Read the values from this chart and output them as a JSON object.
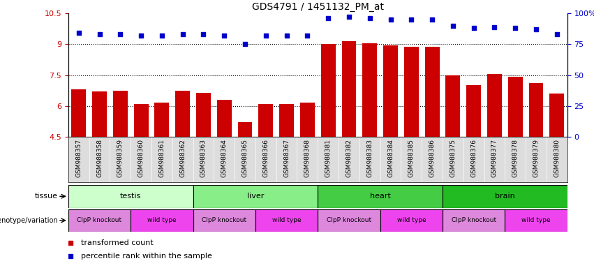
{
  "title": "GDS4791 / 1451132_PM_at",
  "samples": [
    "GSM988357",
    "GSM988358",
    "GSM988359",
    "GSM988360",
    "GSM988361",
    "GSM988362",
    "GSM988363",
    "GSM988364",
    "GSM988365",
    "GSM988366",
    "GSM988367",
    "GSM988368",
    "GSM988381",
    "GSM988382",
    "GSM988383",
    "GSM988384",
    "GSM988385",
    "GSM988386",
    "GSM988375",
    "GSM988376",
    "GSM988377",
    "GSM988378",
    "GSM988379",
    "GSM988380"
  ],
  "bar_values": [
    6.8,
    6.7,
    6.75,
    6.1,
    6.15,
    6.75,
    6.65,
    6.3,
    5.2,
    6.1,
    6.1,
    6.15,
    9.0,
    9.15,
    9.05,
    8.95,
    8.88,
    8.88,
    7.5,
    7.0,
    7.55,
    7.4,
    7.1,
    6.6
  ],
  "percentile_values": [
    84,
    83,
    83,
    82,
    82,
    83,
    83,
    82,
    75,
    82,
    82,
    82,
    96,
    97,
    96,
    95,
    95,
    95,
    90,
    88,
    89,
    88,
    87,
    83
  ],
  "bar_color": "#cc0000",
  "dot_color": "#0000cc",
  "ylim_left": [
    4.5,
    10.5
  ],
  "ylim_right": [
    0,
    100
  ],
  "yticks_left": [
    4.5,
    6.0,
    7.5,
    9.0,
    10.5
  ],
  "ytick_labels_left": [
    "4.5",
    "6",
    "7.5",
    "9",
    "10.5"
  ],
  "yticks_right": [
    0,
    25,
    50,
    75,
    100
  ],
  "ytick_labels_right": [
    "0",
    "25",
    "50",
    "75",
    "100%"
  ],
  "hlines": [
    6.0,
    7.5,
    9.0
  ],
  "tissues": [
    "testis",
    "liver",
    "heart",
    "brain"
  ],
  "tissue_colors": [
    "#ccffcc",
    "#88ee88",
    "#44cc44",
    "#22bb22"
  ],
  "tissue_ranges": [
    [
      0,
      6
    ],
    [
      6,
      12
    ],
    [
      12,
      18
    ],
    [
      18,
      24
    ]
  ],
  "genotype_ranges_ko": [
    [
      0,
      3
    ],
    [
      6,
      9
    ],
    [
      12,
      15
    ],
    [
      18,
      21
    ]
  ],
  "genotype_ranges_wt": [
    [
      3,
      6
    ],
    [
      9,
      12
    ],
    [
      15,
      18
    ],
    [
      21,
      24
    ]
  ],
  "genotype_ko_color": "#dd88dd",
  "genotype_wt_color": "#ee44ee",
  "xtick_bg_color": "#dddddd",
  "legend_bar_label": "transformed count",
  "legend_dot_label": "percentile rank within the sample"
}
